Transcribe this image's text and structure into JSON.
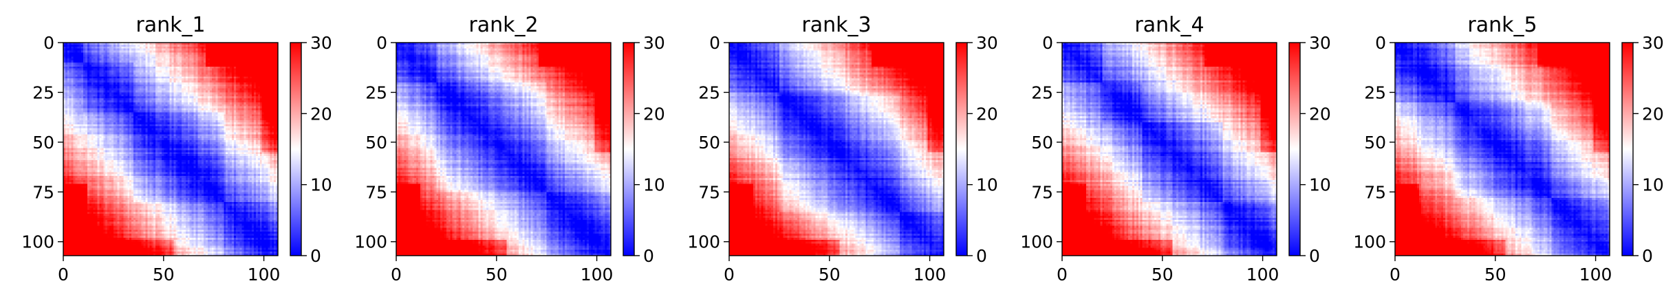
{
  "chart_data": [
    {
      "type": "heatmap",
      "title": "rank_1",
      "size": 107,
      "colormap": "bwr",
      "vmin": 0,
      "vmax": 30,
      "x_ticks": [
        "0",
        "50",
        "100"
      ],
      "y_ticks": [
        "0",
        "25",
        "50",
        "75",
        "100"
      ],
      "colorbar_ticks": [
        "0",
        "10",
        "20",
        "30"
      ],
      "cluster_boundaries": [
        10,
        35,
        80,
        107
      ]
    },
    {
      "type": "heatmap",
      "title": "rank_2",
      "size": 107,
      "colormap": "bwr",
      "vmin": 0,
      "vmax": 30,
      "x_ticks": [
        "0",
        "50",
        "100"
      ],
      "y_ticks": [
        "0",
        "25",
        "50",
        "75",
        "100"
      ],
      "colorbar_ticks": [
        "0",
        "10",
        "20",
        "30"
      ],
      "cluster_boundaries": [
        20,
        75,
        107
      ]
    },
    {
      "type": "heatmap",
      "title": "rank_3",
      "size": 107,
      "colormap": "bwr",
      "vmin": 0,
      "vmax": 30,
      "x_ticks": [
        "0",
        "50",
        "100"
      ],
      "y_ticks": [
        "0",
        "25",
        "50",
        "75",
        "100"
      ],
      "colorbar_ticks": [
        "0",
        "10",
        "20",
        "30"
      ],
      "cluster_boundaries": [
        25,
        85,
        107
      ]
    },
    {
      "type": "heatmap",
      "title": "rank_4",
      "size": 107,
      "colormap": "bwr",
      "vmin": 0,
      "vmax": 30,
      "x_ticks": [
        "0",
        "50",
        "100"
      ],
      "y_ticks": [
        "0",
        "25",
        "50",
        "75",
        "100"
      ],
      "colorbar_ticks": [
        "0",
        "10",
        "20",
        "30"
      ],
      "cluster_boundaries": [
        20,
        40,
        80,
        107
      ]
    },
    {
      "type": "heatmap",
      "title": "rank_5",
      "size": 107,
      "colormap": "bwr",
      "vmin": 0,
      "vmax": 30,
      "x_ticks": [
        "0",
        "50",
        "100"
      ],
      "y_ticks": [
        "0",
        "25",
        "50",
        "75",
        "100"
      ],
      "colorbar_ticks": [
        "0",
        "10",
        "20",
        "30"
      ],
      "cluster_boundaries": [
        30,
        78,
        107
      ]
    }
  ]
}
